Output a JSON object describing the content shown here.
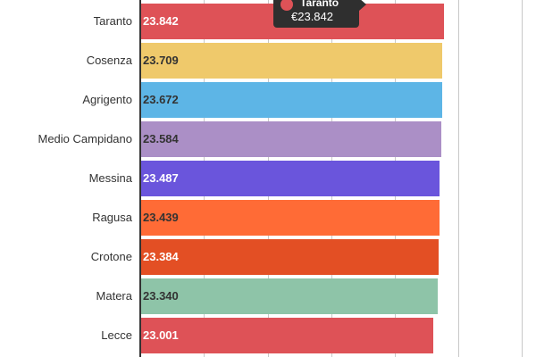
{
  "chart_data": {
    "type": "bar",
    "orientation": "horizontal",
    "title": "",
    "xlabel": "",
    "ylabel": "",
    "xlim": [
      0,
      30
    ],
    "grid_step": 5,
    "grid": true,
    "categories": [
      "Taranto",
      "Cosenza",
      "Agrigento",
      "Medio Campidano",
      "Messina",
      "Ragusa",
      "Crotone",
      "Matera",
      "Lecce"
    ],
    "values": [
      23.842,
      23.709,
      23.672,
      23.584,
      23.487,
      23.439,
      23.384,
      23.34,
      23.001
    ],
    "value_labels": [
      "23.842",
      "23.709",
      "23.672",
      "23.584",
      "23.487",
      "23.439",
      "23.384",
      "23.340",
      "23.001"
    ],
    "colors": [
      "#de5257",
      "#efc96b",
      "#5db5e6",
      "#ab8fc6",
      "#6a55dc",
      "#ff6b36",
      "#e34f24",
      "#8ec4a8",
      "#de5257"
    ],
    "label_colors": [
      "#ffffff",
      "#333333",
      "#333333",
      "#333333",
      "#ffffff",
      "#333333",
      "#ffffff",
      "#333333",
      "#ffffff"
    ],
    "tooltip": {
      "category": "Taranto",
      "value": "€23.842",
      "color": "#de5257"
    }
  }
}
